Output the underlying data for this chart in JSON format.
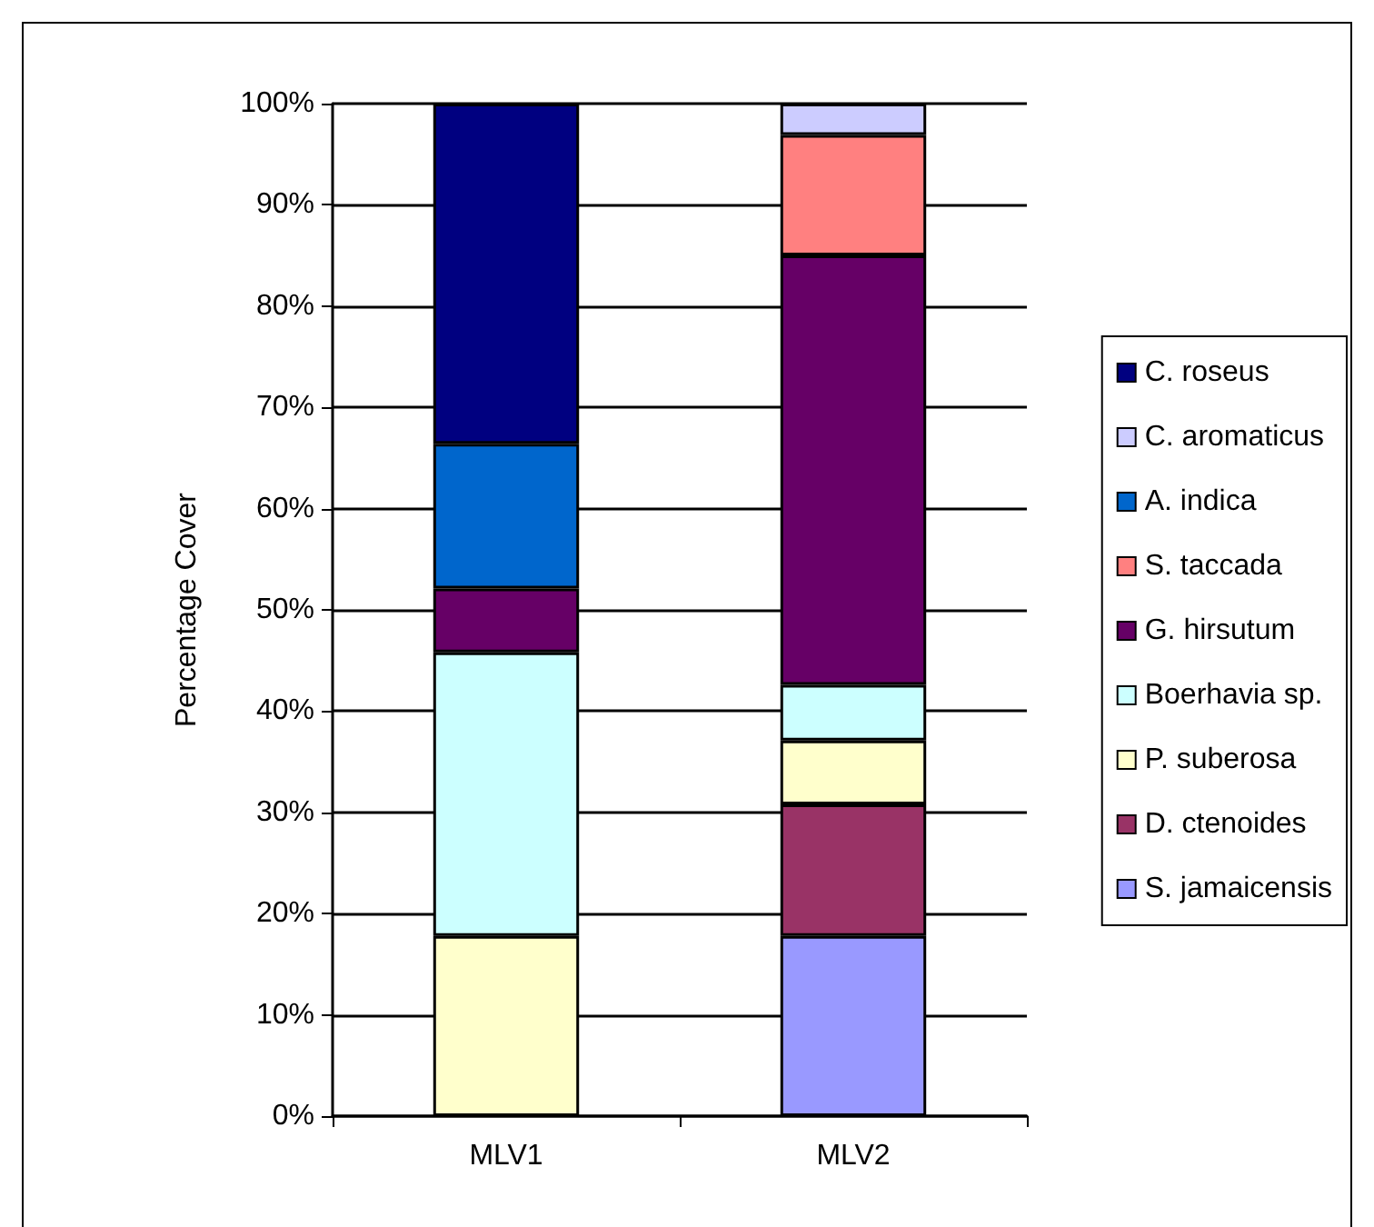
{
  "chart_data": {
    "type": "bar",
    "stacked": true,
    "ylabel": "Percentage Cover",
    "categories": [
      "MLV1",
      "MLV2"
    ],
    "series": [
      {
        "name": "S. jamaicensis",
        "color": "#9999ff",
        "values": [
          null,
          17.8
        ]
      },
      {
        "name": "D. ctenoides",
        "color": "#993366",
        "values": [
          null,
          13.0
        ]
      },
      {
        "name": "P. suberosa",
        "color": "#ffffcc",
        "values": [
          17.8,
          6.3
        ]
      },
      {
        "name": "Boerhavia sp.",
        "color": "#ccffff",
        "values": [
          28.0,
          5.5
        ]
      },
      {
        "name": "G. hirsutum",
        "color": "#660066",
        "values": [
          6.3,
          42.4
        ]
      },
      {
        "name": "S. taccada",
        "color": "#ff8080",
        "values": [
          null,
          11.9
        ]
      },
      {
        "name": "A. indica",
        "color": "#0066cc",
        "values": [
          14.3,
          null
        ]
      },
      {
        "name": "C. aromaticus",
        "color": "#ccccff",
        "values": [
          null,
          3.1
        ]
      },
      {
        "name": "C. roseus",
        "color": "#000080",
        "values": [
          33.6,
          null
        ]
      }
    ],
    "ylim": [
      0,
      100
    ],
    "yticks": [
      {
        "value": 0,
        "label": "0%"
      },
      {
        "value": 10,
        "label": "10%"
      },
      {
        "value": 20,
        "label": "20%"
      },
      {
        "value": 30,
        "label": "30%"
      },
      {
        "value": 40,
        "label": "40%"
      },
      {
        "value": 50,
        "label": "50%"
      },
      {
        "value": 60,
        "label": "60%"
      },
      {
        "value": 70,
        "label": "70%"
      },
      {
        "value": 80,
        "label": "80%"
      },
      {
        "value": 90,
        "label": "90%"
      },
      {
        "value": 100,
        "label": "100%"
      }
    ],
    "grid": "y",
    "legend": "right"
  }
}
